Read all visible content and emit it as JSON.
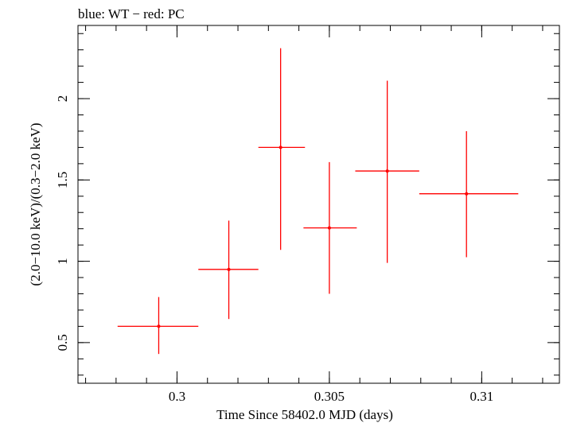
{
  "colors": {
    "data": "#ff0000",
    "axes": "#000000",
    "background": "#ffffff"
  },
  "chart_data": {
    "type": "scatter",
    "title": "blue: WT − red: PC",
    "xlabel": "Time Since 58402.0 MJD (days)",
    "ylabel": "(2.0−10.0 keV)/(0.3−2.0 keV)",
    "xlim": [
      0.29675,
      0.31255
    ],
    "ylim": [
      0.25,
      2.45
    ],
    "xticks": [
      {
        "value": 0.3,
        "label": "0.3"
      },
      {
        "value": 0.305,
        "label": "0.305"
      },
      {
        "value": 0.31,
        "label": "0.31"
      }
    ],
    "yticks": [
      {
        "value": 0.5,
        "label": "0.5"
      },
      {
        "value": 1.0,
        "label": "1"
      },
      {
        "value": 1.5,
        "label": "1.5"
      },
      {
        "value": 2.0,
        "label": "2"
      }
    ],
    "xminor_step": 0.001,
    "yminor_step": 0.1,
    "series": [
      {
        "name": "PC",
        "color": "#ff0000",
        "points": [
          {
            "x": 0.2994,
            "xerr_lo": 0.00135,
            "xerr_hi": 0.0013,
            "y": 0.6,
            "y_lo": 0.43,
            "y_hi": 0.78
          },
          {
            "x": 0.3017,
            "xerr_lo": 0.001,
            "xerr_hi": 0.00097,
            "y": 0.95,
            "y_lo": 0.645,
            "y_hi": 1.25
          },
          {
            "x": 0.3034,
            "xerr_lo": 0.00073,
            "xerr_hi": 0.0008,
            "y": 1.7,
            "y_lo": 1.07,
            "y_hi": 2.31
          },
          {
            "x": 0.305,
            "xerr_lo": 0.00085,
            "xerr_hi": 0.0009,
            "y": 1.205,
            "y_lo": 0.8,
            "y_hi": 1.61
          },
          {
            "x": 0.3069,
            "xerr_lo": 0.00105,
            "xerr_hi": 0.00105,
            "y": 1.555,
            "y_lo": 0.99,
            "y_hi": 2.11
          },
          {
            "x": 0.3095,
            "xerr_lo": 0.00155,
            "xerr_hi": 0.0017,
            "y": 1.415,
            "y_lo": 1.025,
            "y_hi": 1.8
          }
        ]
      }
    ]
  }
}
